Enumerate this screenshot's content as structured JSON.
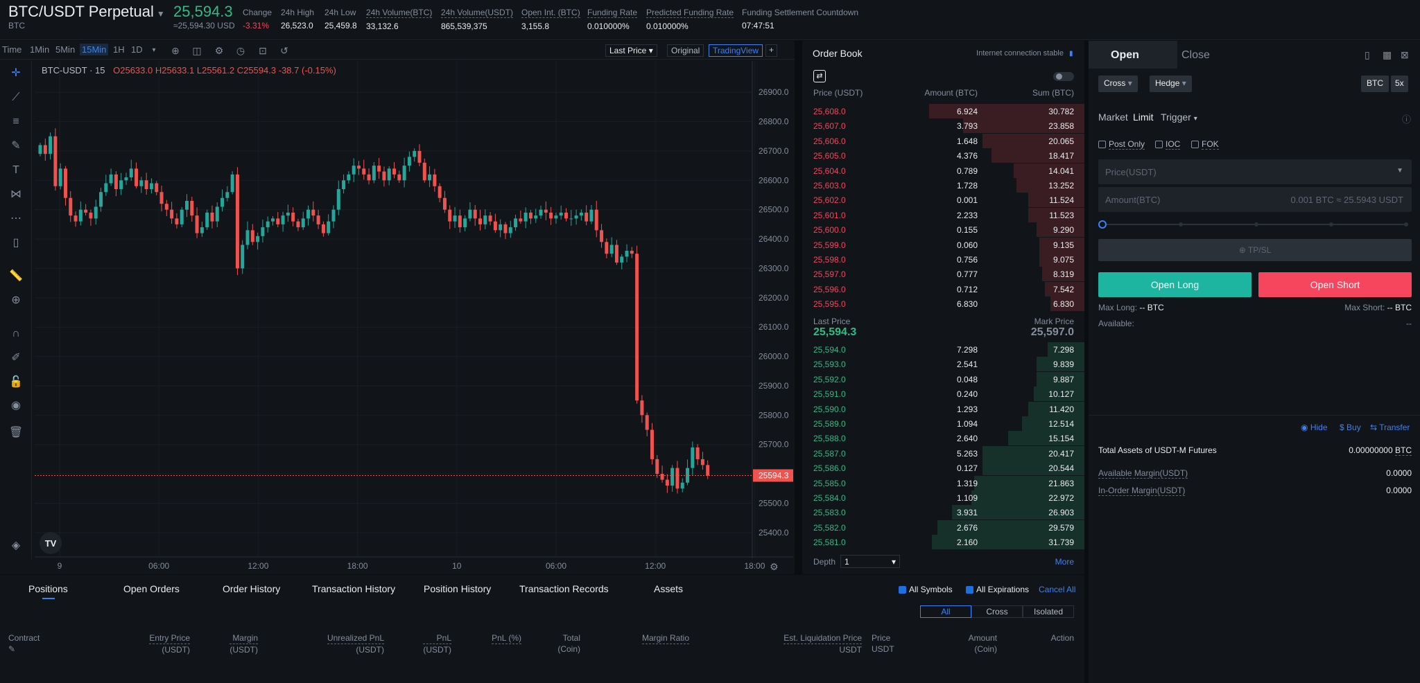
{
  "header": {
    "symbol": "BTC/USDT Perpetual",
    "symbol_sub": "BTC",
    "last_price": "25,594.3",
    "last_price_usd": "≈25,594.30 USD",
    "stats": [
      {
        "label": "Change",
        "value": "-3.31%"
      },
      {
        "label": "24h High",
        "value": "26,523.0"
      },
      {
        "label": "24h Low",
        "value": "25,459.8"
      },
      {
        "label": "24h Volume(BTC)",
        "value": "33,132.6"
      },
      {
        "label": "24h Volume(USDT)",
        "value": "865,539,375"
      },
      {
        "label": "Open Int. (BTC)",
        "value": "3,155.8"
      },
      {
        "label": "Funding Rate",
        "value": "0.010000%"
      },
      {
        "label": "Predicted Funding Rate",
        "value": "0.010000%"
      },
      {
        "label": "Funding Settlement Countdown",
        "value": "07:47:51"
      }
    ]
  },
  "chart_toolbar": {
    "timeframes": [
      "Time",
      "1Min",
      "5Min",
      "15Min",
      "1H",
      "1D"
    ],
    "active": "15Min",
    "last_price_btn": "Last Price",
    "original_btn": "Original",
    "tradingview_btn": "TradingView",
    "plus": "+"
  },
  "chart_data": {
    "type": "candlestick",
    "title": "BTC-USDT · 15",
    "ohlc": {
      "o": "O25633.0",
      "h": "H25633.1",
      "l": "L25561.2",
      "c": "C25594.3",
      "chg": "-38.7 (-0.15%)"
    },
    "yticks": [
      "26900.0",
      "26800.0",
      "26700.0",
      "26600.0",
      "26500.0",
      "26400.0",
      "26300.0",
      "26200.0",
      "26100.0",
      "26000.0",
      "25900.0",
      "25800.0",
      "25700.0",
      "25600.0",
      "25500.0",
      "25400.0"
    ],
    "ylim": [
      25350,
      26950
    ],
    "xticks": [
      "9",
      "06:00",
      "12:00",
      "18:00",
      "10",
      "06:00",
      "12:00",
      "18:00"
    ],
    "current_price_label": "25594.3",
    "current_price": 25594.3,
    "up_color": "#26a69a",
    "down_color": "#ef5350",
    "closes": [
      26720,
      26690,
      26750,
      26580,
      26640,
      26540,
      26480,
      26460,
      26500,
      26490,
      26470,
      26510,
      26560,
      26590,
      26620,
      26570,
      26600,
      26610,
      26640,
      26580,
      26600,
      26570,
      26590,
      26560,
      26520,
      26500,
      26470,
      26450,
      26500,
      26530,
      26480,
      26420,
      26440,
      26490,
      26460,
      26510,
      26540,
      26560,
      26620,
      26300,
      26380,
      26430,
      26390,
      26410,
      26440,
      26460,
      26470,
      26450,
      26480,
      26490,
      26460,
      26440,
      26470,
      26500,
      26480,
      26450,
      26420,
      26460,
      26500,
      26570,
      26600,
      26620,
      26650,
      26640,
      26620,
      26600,
      26650,
      26630,
      26600,
      26640,
      26620,
      26600,
      26650,
      26680,
      26700,
      26660,
      26600,
      26620,
      26580,
      26540,
      26500,
      26460,
      26480,
      26440,
      26470,
      26500,
      26470,
      26450,
      26480,
      26460,
      26430,
      26450,
      26420,
      26440,
      26470,
      26460,
      26490,
      26470,
      26480,
      26500,
      26490,
      26470,
      26480,
      26490,
      26470,
      26470,
      26480,
      26490,
      26460,
      26500,
      26430,
      26390,
      26350,
      26380,
      26320,
      26340,
      26360,
      26350,
      25850,
      25800,
      25750,
      25650,
      25600,
      25580,
      25560,
      25620,
      25550,
      25570,
      25620,
      25690,
      25650,
      25630,
      25594.3
    ],
    "x_count": 133
  },
  "orderbook": {
    "title": "Order Book",
    "conn": "Internet connection stable",
    "headers": [
      "Price (USDT)",
      "Amount (BTC)",
      "Sum (BTC)"
    ],
    "asks": [
      {
        "p": "25,608.0",
        "a": "6.924",
        "s": "30.782",
        "w": 0.55
      },
      {
        "p": "25,607.0",
        "a": "3.793",
        "s": "23.858",
        "w": 0.43
      },
      {
        "p": "25,606.0",
        "a": "1.648",
        "s": "20.065",
        "w": 0.36
      },
      {
        "p": "25,605.0",
        "a": "4.376",
        "s": "18.417",
        "w": 0.33
      },
      {
        "p": "25,604.0",
        "a": "0.789",
        "s": "14.041",
        "w": 0.25
      },
      {
        "p": "25,603.0",
        "a": "1.728",
        "s": "13.252",
        "w": 0.24
      },
      {
        "p": "25,602.0",
        "a": "0.001",
        "s": "11.524",
        "w": 0.2
      },
      {
        "p": "25,601.0",
        "a": "2.233",
        "s": "11.523",
        "w": 0.2
      },
      {
        "p": "25,600.0",
        "a": "0.155",
        "s": "9.290",
        "w": 0.17
      },
      {
        "p": "25,599.0",
        "a": "0.060",
        "s": "9.135",
        "w": 0.16
      },
      {
        "p": "25,598.0",
        "a": "0.756",
        "s": "9.075",
        "w": 0.16
      },
      {
        "p": "25,597.0",
        "a": "0.777",
        "s": "8.319",
        "w": 0.15
      },
      {
        "p": "25,596.0",
        "a": "0.712",
        "s": "7.542",
        "w": 0.14
      },
      {
        "p": "25,595.0",
        "a": "6.830",
        "s": "6.830",
        "w": 0.12
      }
    ],
    "last_label": "Last Price",
    "last_value": "25,594.3",
    "mark_label": "Mark Price",
    "mark_value": "25,597.0",
    "bids": [
      {
        "p": "25,594.0",
        "a": "7.298",
        "s": "7.298",
        "w": 0.13
      },
      {
        "p": "25,593.0",
        "a": "2.541",
        "s": "9.839",
        "w": 0.17
      },
      {
        "p": "25,592.0",
        "a": "0.048",
        "s": "9.887",
        "w": 0.17
      },
      {
        "p": "25,591.0",
        "a": "0.240",
        "s": "10.127",
        "w": 0.18
      },
      {
        "p": "25,590.0",
        "a": "1.293",
        "s": "11.420",
        "w": 0.2
      },
      {
        "p": "25,589.0",
        "a": "1.094",
        "s": "12.514",
        "w": 0.22
      },
      {
        "p": "25,588.0",
        "a": "2.640",
        "s": "15.154",
        "w": 0.27
      },
      {
        "p": "25,587.0",
        "a": "5.263",
        "s": "20.417",
        "w": 0.36
      },
      {
        "p": "25,586.0",
        "a": "0.127",
        "s": "20.544",
        "w": 0.36
      },
      {
        "p": "25,585.0",
        "a": "1.319",
        "s": "21.863",
        "w": 0.39
      },
      {
        "p": "25,584.0",
        "a": "1.109",
        "s": "22.972",
        "w": 0.4
      },
      {
        "p": "25,583.0",
        "a": "3.931",
        "s": "26.903",
        "w": 0.47
      },
      {
        "p": "25,582.0",
        "a": "2.676",
        "s": "29.579",
        "w": 0.52
      },
      {
        "p": "25,581.0",
        "a": "2.160",
        "s": "31.739",
        "w": 0.54
      }
    ],
    "depth_label": "Depth",
    "depth_value": "1",
    "more": "More"
  },
  "trade": {
    "tab_open": "Open",
    "tab_close": "Close",
    "margin_mode": "Cross",
    "position_mode": "Hedge",
    "unit": "BTC",
    "leverage": "5x",
    "order_types": [
      "Market",
      "Limit",
      "Trigger"
    ],
    "post_only": "Post Only",
    "ioc": "IOC",
    "fok": "FOK",
    "price_placeholder": "Price(USDT)",
    "amount_placeholder": "Amount(BTC)",
    "amount_hint": "0.001 BTC ≈ 25.5943 USDT",
    "tpsl": "TP/SL",
    "open_long": "Open Long",
    "open_short": "Open Short",
    "max_long_label": "Max Long:",
    "max_long_value": "-- BTC",
    "max_short_label": "Max Short:",
    "max_short_value": "-- BTC",
    "available_label": "Available:",
    "available_value": "--",
    "long_color": "#1db59f",
    "short_color": "#f6465d"
  },
  "assets": {
    "hide": "Hide",
    "buy": "Buy",
    "transfer": "Transfer",
    "total_label": "Total Assets of USDT-M Futures",
    "total_value": "0.00000000",
    "total_unit": "BTC",
    "avail_label": "Available Margin(USDT)",
    "avail_value": "0.0000",
    "inorder_label": "In-Order Margin(USDT)",
    "inorder_value": "0.0000"
  },
  "bottom": {
    "tabs": [
      "Positions",
      "Open Orders",
      "Order History",
      "Transaction History",
      "Position History",
      "Transaction Records",
      "Assets"
    ],
    "all_symbols": "All Symbols",
    "all_expirations": "All Expirations",
    "cancel_all": "Cancel All",
    "filters": [
      "All",
      "Cross",
      "Isolated"
    ],
    "columns": [
      {
        "l1": "Contract",
        "l2": ""
      },
      {
        "l1": "Entry Price",
        "l2": "(USDT)"
      },
      {
        "l1": "Margin",
        "l2": "(USDT)"
      },
      {
        "l1": "Unrealized PnL",
        "l2": "(USDT)"
      },
      {
        "l1": "PnL",
        "l2": "(USDT)"
      },
      {
        "l1": "PnL (%)",
        "l2": ""
      },
      {
        "l1": "Total",
        "l2": "(Coin)"
      },
      {
        "l1": "Margin Ratio",
        "l2": ""
      },
      {
        "l1": "Est. Liquidation Price",
        "l2": "USDT"
      },
      {
        "l1": "Price",
        "l2": "USDT"
      },
      {
        "l1": "Amount",
        "l2": "(Coin)"
      },
      {
        "l1": "Action",
        "l2": ""
      }
    ]
  }
}
